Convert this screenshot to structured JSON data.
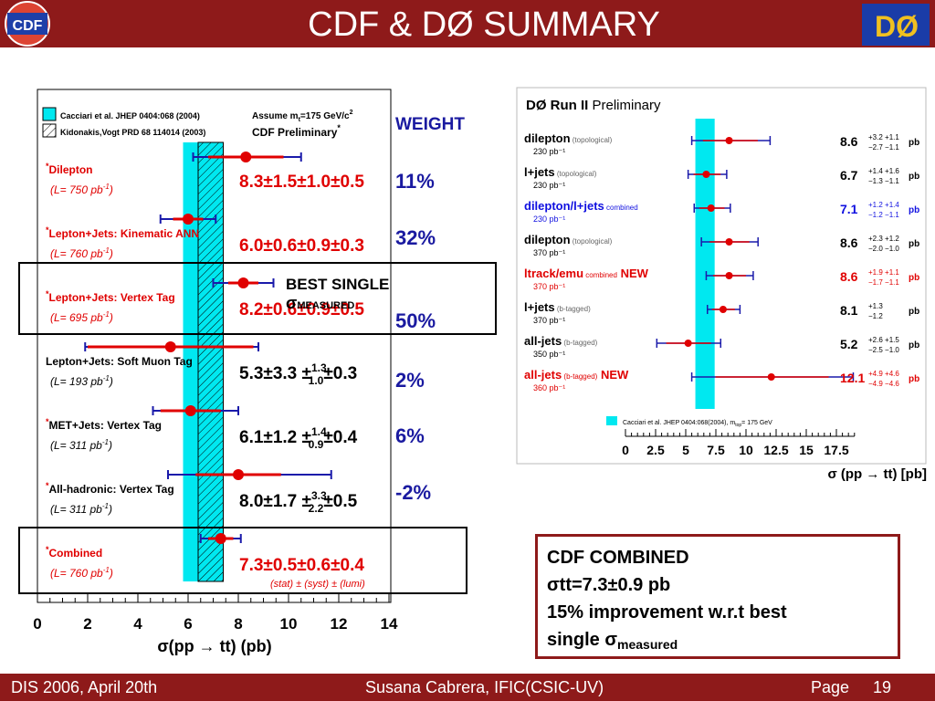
{
  "slide_title": "CDF & DØ SUMMARY",
  "logos": {
    "left": "CDF",
    "right": "DØ"
  },
  "footer": {
    "left": "DIS 2006, April 20th",
    "center": "Susana Cabrera, IFIC(CSIC-UV)",
    "page_label": "Page",
    "page_number": "19"
  },
  "weights": {
    "header": "WEIGHT",
    "values": [
      "11%",
      "32%",
      "50%",
      "2%",
      "6%",
      "-2%"
    ]
  },
  "best_single": {
    "line1": "BEST SINGLE",
    "sigma": "σ",
    "sub": "MEASURED"
  },
  "combined_box": {
    "line1": "CDF COMBINED",
    "line2": "σtt=7.3±0.9 pb",
    "line3": "15% improvement w.r.t best",
    "line4_prefix": "single σ",
    "line4_sub": "measured"
  },
  "cdf_plot": {
    "legend": [
      "Cacciari et al. JHEP 0404:068 (2004)",
      "Kidonakis,Vogt PRD 68 114014 (2003)"
    ],
    "assume": "Assume m",
    "assume_sub": "t",
    "assume_rest": "=175 GeV/c",
    "assume_sup": "2",
    "prelim": "CDF Preliminary",
    "star": "*",
    "measurements": [
      {
        "label": "Dilepton",
        "lumi": "(L= 750 pb",
        "star": true,
        "red": true,
        "result": "8.3±1.5±1.0±0.5"
      },
      {
        "label": "Lepton+Jets: Kinematic ANN",
        "lumi": "(L= 760 pb",
        "star": true,
        "red": true,
        "result": "6.0±0.6±0.9±0.3"
      },
      {
        "label": "Lepton+Jets: Vertex Tag",
        "lumi": "(L= 695 pb",
        "star": true,
        "red": true,
        "result": "8.2±0.6±0.9±0.5"
      },
      {
        "label": "Lepton+Jets: Soft Muon Tag",
        "lumi": "(L= 193 pb",
        "star": false,
        "red": false,
        "result_a": "5.3±3.3 ±",
        "result_sup": "1.3",
        "result_sub": "1.0",
        "result_b": "±0.3"
      },
      {
        "label": "MET+Jets: Vertex Tag",
        "lumi": "(L= 311 pb",
        "star": true,
        "red": false,
        "result_a": "6.1±1.2 ±",
        "result_sup": "1.4",
        "result_sub": "0.9",
        "result_b": "±0.4"
      },
      {
        "label": "All-hadronic: Vertex Tag",
        "lumi": "(L= 311 pb",
        "star": true,
        "red": false,
        "result_a": "8.0±1.7 ±",
        "result_sup": "3.3",
        "result_sub": "2.2",
        "result_b": "±0.5"
      },
      {
        "label": "Combined",
        "lumi": "(L= 760 pb",
        "star": true,
        "red": true,
        "result": "7.3±0.5±0.6±0.4"
      }
    ],
    "lumi_sup": "-1",
    "lumi_close": ")",
    "footnote": "(stat) ± (syst) ± (lumi)",
    "xaxis_label": "σ(pp → tt) (pb)",
    "xticks": [
      "0",
      "2",
      "4",
      "6",
      "8",
      "10",
      "12",
      "14"
    ]
  },
  "d0_plot": {
    "title": "DØ Run II",
    "prelim": "Preliminary",
    "legend": "Cacciari et al. JHEP 0404:068(2004), m",
    "legend_sub": "top",
    "legend_rest": "= 175 GeV",
    "unit": "pb",
    "entries": [
      {
        "name": "dilepton",
        "tag": "(topological)",
        "lumi": "230 pb⁻¹",
        "value": "8.6",
        "up": "+3.2 +1.1",
        "down": "−2.7 −1.1",
        "color": "black"
      },
      {
        "name": "l+jets",
        "tag": "(topological)",
        "lumi": "230 pb⁻¹",
        "value": "6.7",
        "up": "+1.4 +1.6",
        "down": "−1.3 −1.1",
        "color": "black"
      },
      {
        "name": "dilepton/l+jets",
        "tag": "combined",
        "lumi": "230 pb⁻¹",
        "value": "7.1",
        "up": "+1.2 +1.4",
        "down": "−1.2 −1.1",
        "color": "blue"
      },
      {
        "name": "dilepton",
        "tag": "(topological)",
        "lumi": "370 pb⁻¹",
        "value": "8.6",
        "up": "+2.3 +1.2",
        "down": "−2.0 −1.0",
        "color": "black"
      },
      {
        "name": "ltrack/emu",
        "tag": "combined",
        "new": "NEW",
        "lumi": "370 pb⁻¹",
        "value": "8.6",
        "up": "+1.9 +1.1",
        "down": "−1.7 −1.1",
        "color": "red"
      },
      {
        "name": "l+jets",
        "tag": "(b-tagged)",
        "lumi": "370 pb⁻¹",
        "value": "8.1",
        "up": "+1.3",
        "down": "−1.2",
        "color": "black"
      },
      {
        "name": "all-jets",
        "tag": "(b-tagged)",
        "lumi": "350 pb⁻¹",
        "value": "5.2",
        "up": "+2.6 +1.5",
        "down": "−2.5 −1.0",
        "color": "black"
      },
      {
        "name": "all-jets",
        "tag": "(b-tagged)",
        "new": "NEW",
        "lumi": "360 pb⁻¹",
        "value": "12.1",
        "up": "+4.9 +4.6",
        "down": "−4.9 −4.6",
        "color": "red"
      }
    ],
    "xticks": [
      "0",
      "2.5",
      "5",
      "7.5",
      "10",
      "12.5",
      "15",
      "17.5"
    ],
    "xaxis_label": "σ (pp → tt) [pb]"
  }
}
